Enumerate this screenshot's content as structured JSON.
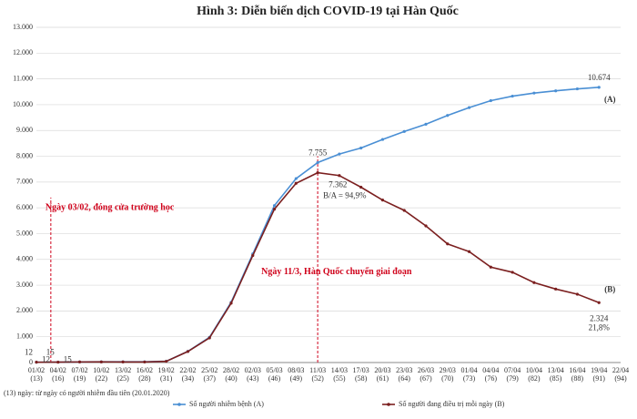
{
  "chart_data": {
    "type": "line",
    "title": "Hình 3: Diễn biến dịch COVID-19 tại Hàn Quốc",
    "categories": [
      "01/02",
      "04/02",
      "07/02",
      "10/02",
      "13/02",
      "16/02",
      "19/02",
      "22/02",
      "25/02",
      "28/02",
      "02/03",
      "05/03",
      "08/03",
      "11/03",
      "14/03",
      "17/03",
      "20/03",
      "23/03",
      "26/03",
      "29/03",
      "01/04",
      "04/04",
      "07/04",
      "10/04",
      "13/04",
      "16/04",
      "19/04",
      "22/04"
    ],
    "day_labels": [
      "(13)",
      "(16)",
      "(19)",
      "(22)",
      "(25)",
      "(28)",
      "(31)",
      "(34)",
      "(37)",
      "(40)",
      "(43)",
      "(46)",
      "(49)",
      "(52)",
      "(55)",
      "(58)",
      "(61)",
      "(64)",
      "(67)",
      "(70)",
      "(73)",
      "(76)",
      "(79)",
      "(82)",
      "(85)",
      "(88)",
      "(91)",
      "(94)"
    ],
    "series": [
      {
        "name": "Số người nhiễm bệnh (A)",
        "tag": "(A)",
        "color": "#4a8fd4",
        "values": [
          12,
          15,
          24,
          27,
          28,
          29,
          51,
          433,
          977,
          2337,
          4212,
          6088,
          7134,
          7755,
          8086,
          8320,
          8652,
          8961,
          9241,
          9583,
          9887,
          10156,
          10331,
          10450,
          10537,
          10613,
          10674,
          null
        ],
        "value_labels": [
          "12",
          "15",
          null,
          null,
          null,
          null,
          null,
          null,
          null,
          null,
          null,
          null,
          null,
          "7.755",
          null,
          null,
          null,
          null,
          null,
          null,
          null,
          null,
          null,
          null,
          null,
          null,
          "10.674",
          null
        ]
      },
      {
        "name": "Số người đang điều trị mỗi ngày (B)",
        "tag": "(B)",
        "color": "#7b1f1f",
        "values": [
          12,
          15,
          22,
          24,
          21,
          20,
          47,
          427,
          955,
          2300,
          4150,
          5950,
          6950,
          7362,
          7250,
          6800,
          6300,
          5900,
          5300,
          4600,
          4300,
          3700,
          3500,
          3100,
          2850,
          2650,
          2324,
          null
        ],
        "value_labels": [
          "12",
          "15",
          null,
          null,
          null,
          null,
          null,
          null,
          null,
          null,
          null,
          null,
          null,
          "7.362",
          null,
          null,
          null,
          null,
          null,
          null,
          null,
          null,
          null,
          null,
          null,
          null,
          "2.324",
          null
        ]
      }
    ],
    "ratio_label": "B/A = 94,9%",
    "end_ratio_label": "21,8%",
    "events": [
      {
        "date": "03/02",
        "text": "Ngày 03/02, đóng cửa trường học"
      },
      {
        "date": "11/03",
        "text": "Ngày 11/3, Hàn Quốc chuyển giai đoạn"
      }
    ],
    "footnote": "(13) ngày: từ ngày có người nhiễm đầu tiên (20.01.2020)",
    "ylim": [
      0,
      13000
    ],
    "yticks": [
      0,
      {
        "value": 1000,
        "label": "1.000"
      },
      {
        "value": 2000,
        "label": "2.000"
      },
      {
        "value": 3000,
        "label": "3.000"
      },
      {
        "value": 4000,
        "label": "4.000"
      },
      {
        "value": 5000,
        "label": "5.000"
      },
      {
        "value": 6000,
        "label": "6.000"
      },
      {
        "value": 7000,
        "label": "7.000"
      },
      {
        "value": 8000,
        "label": "8.000"
      },
      {
        "value": 9000,
        "label": "9.000"
      },
      {
        "value": 10000,
        "label": "10.000"
      },
      {
        "value": 11000,
        "label": "11.000"
      },
      {
        "value": 12000,
        "label": "12.000"
      },
      {
        "value": 13000,
        "label": "13.000"
      }
    ],
    "grid": true
  }
}
